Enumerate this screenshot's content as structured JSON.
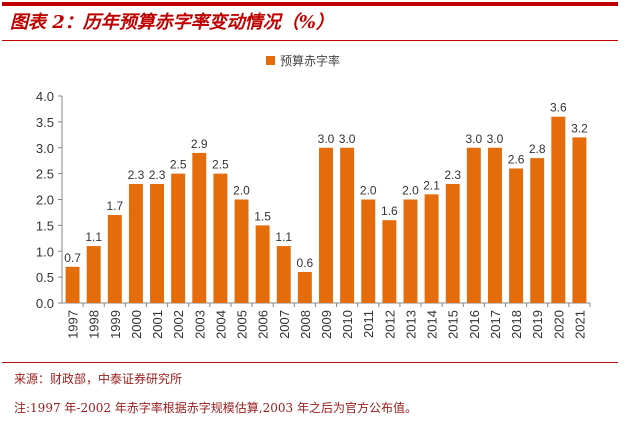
{
  "header": {
    "title": "图表 2：历年预算赤字率变动情况（%）"
  },
  "chart_data": {
    "type": "bar",
    "title": "",
    "xlabel": "",
    "ylabel": "",
    "ylim": [
      0,
      4.0
    ],
    "yticks": [
      "0.0",
      "0.5",
      "1.0",
      "1.5",
      "2.0",
      "2.5",
      "3.0",
      "3.5",
      "4.0"
    ],
    "grid": false,
    "legend_position": "top-center",
    "categories": [
      "1997",
      "1998",
      "1999",
      "2000",
      "2001",
      "2002",
      "2003",
      "2004",
      "2005",
      "2006",
      "2007",
      "2008",
      "2009",
      "2010",
      "2011",
      "2012",
      "2013",
      "2014",
      "2015",
      "2016",
      "2017",
      "2018",
      "2019",
      "2020",
      "2021"
    ],
    "series": [
      {
        "name": "预算赤字率",
        "color": "#e46c0a",
        "values": [
          0.7,
          1.1,
          1.7,
          2.3,
          2.3,
          2.5,
          2.9,
          2.5,
          2.0,
          1.5,
          1.1,
          0.6,
          3.0,
          3.0,
          2.0,
          1.6,
          2.0,
          2.1,
          2.3,
          3.0,
          3.0,
          2.6,
          2.8,
          3.6,
          3.2
        ],
        "labels": [
          "0.7",
          "1.1",
          "1.7",
          "2.3",
          "2.3",
          "2.5",
          "2.9",
          "2.5",
          "2.0",
          "1.5",
          "1.1",
          "0.6",
          "3.0",
          "3.0",
          "2.0",
          "1.6",
          "2.0",
          "2.1",
          "2.3",
          "3.0",
          "3.0",
          "2.6",
          "2.8",
          "3.6",
          "3.2"
        ]
      }
    ]
  },
  "footer": {
    "source": "来源：财政部，中泰证券研究所",
    "note": "注:1997 年-2002 年赤字率根据赤字规模估算,2003 年之后为官方公布值。"
  }
}
